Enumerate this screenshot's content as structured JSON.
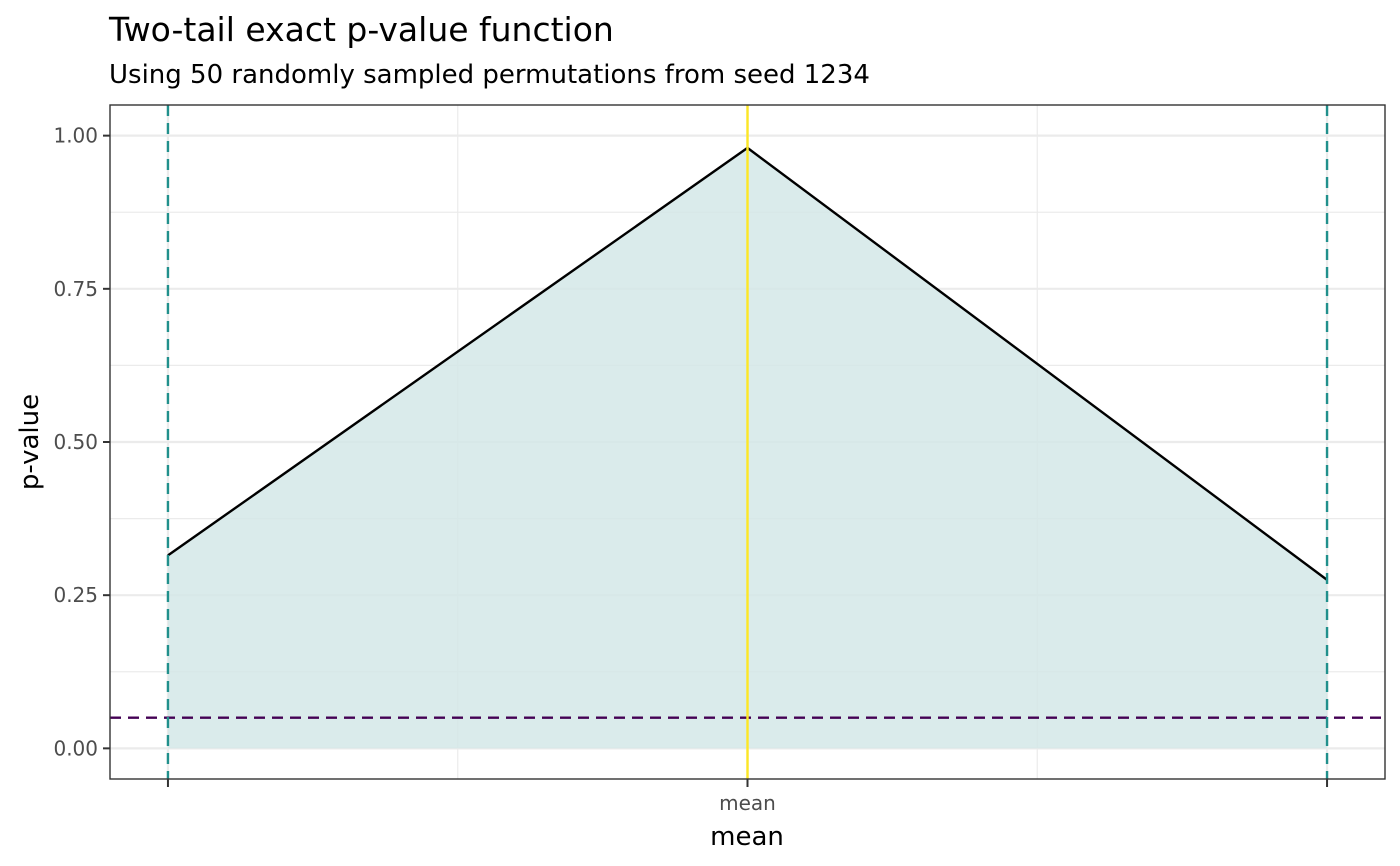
{
  "chart_data": {
    "type": "area",
    "title": "Two-tail exact p-value function",
    "subtitle": "Using 50 randomly sampled permutations from seed 1234",
    "xlabel": "mean",
    "ylabel": "p-value",
    "x_ticks": [
      {
        "x": 0,
        "label": ""
      },
      {
        "x": 1,
        "label": "mean"
      },
      {
        "x": 2,
        "label": ""
      }
    ],
    "y_ticks": [
      0.0,
      0.25,
      0.5,
      0.75,
      1.0
    ],
    "y_tick_labels": [
      "0.00",
      "0.25",
      "0.50",
      "0.75",
      "1.00"
    ],
    "xlim": [
      -0.1,
      2.1
    ],
    "ylim": [
      -0.05,
      1.05
    ],
    "grid": true,
    "series": [
      {
        "x": [
          0,
          1,
          2
        ],
        "y": [
          0.315,
          0.98,
          0.275
        ]
      }
    ],
    "reference_lines": {
      "vertical_dashed": [
        0,
        2
      ],
      "vertical_solid": [
        1
      ],
      "horizontal_dashed": [
        0.05
      ]
    },
    "colors": {
      "fill": "#d3e8e7",
      "line": "#000000",
      "interval_lines": "#21908c",
      "estimate_line": "#fde725",
      "alpha_line": "#440154",
      "grid": "#ebebeb",
      "panel_border": "#333333"
    }
  }
}
